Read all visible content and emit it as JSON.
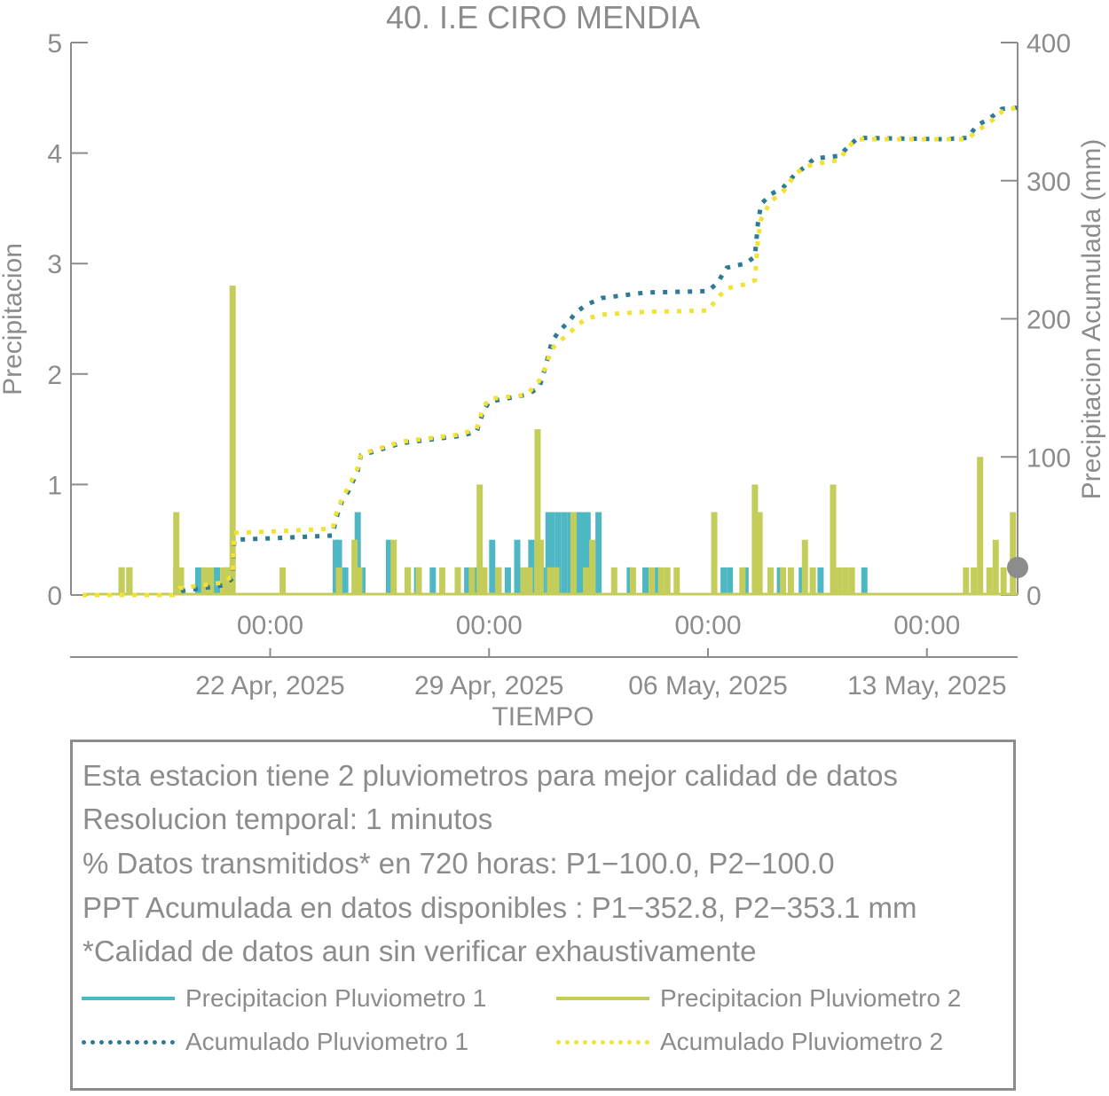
{
  "chart_data": {
    "type": "bar+line",
    "title": "40. I.E CIRO MENDIA",
    "xlabel": "TIEMPO",
    "ylabel_left": "Precipitacion",
    "ylabel_right": "Precipitacion Acumulada (mm)",
    "ylim_left": [
      0,
      5
    ],
    "ylim_right": [
      0,
      400
    ],
    "yticks_left": [
      "0",
      "1",
      "2",
      "3",
      "4",
      "5"
    ],
    "yticks_right": [
      "0",
      "100",
      "200",
      "300",
      "400"
    ],
    "x_tick_time_label": "00:00",
    "x_tick_date_labels": [
      "22 Apr, 2025",
      "29 Apr, 2025",
      "06 May, 2025",
      "13 May, 2025"
    ],
    "x_tick_days": [
      6,
      13,
      20,
      27
    ],
    "xlim_days": [
      0,
      29.9
    ],
    "series": [
      {
        "name": "Precipitacion Pluviometro 1",
        "kind": "bar",
        "color": "#4db8c4",
        "points": [
          [
            1.25,
            0.25
          ],
          [
            1.5,
            0.25
          ],
          [
            3.0,
            0.25
          ],
          [
            3.7,
            0.25
          ],
          [
            4.3,
            0.25
          ],
          [
            4.6,
            0.25
          ],
          [
            8.1,
            0.5
          ],
          [
            8.2,
            0.5
          ],
          [
            8.4,
            0.25
          ],
          [
            8.8,
            0.75
          ],
          [
            8.95,
            0.25
          ],
          [
            9.8,
            0.5
          ],
          [
            10.4,
            0.25
          ],
          [
            10.7,
            0.25
          ],
          [
            11.2,
            0.25
          ],
          [
            12.0,
            0.25
          ],
          [
            12.3,
            0.25
          ],
          [
            12.6,
            0.25
          ],
          [
            12.8,
            0.25
          ],
          [
            13.1,
            0.5
          ],
          [
            13.3,
            0.25
          ],
          [
            13.6,
            0.25
          ],
          [
            13.9,
            0.5
          ],
          [
            14.2,
            0.25
          ],
          [
            14.35,
            0.5
          ],
          [
            14.7,
            0.25
          ],
          [
            14.9,
            0.75
          ],
          [
            15.0,
            0.75
          ],
          [
            15.2,
            0.75
          ],
          [
            15.4,
            0.75
          ],
          [
            15.6,
            0.75
          ],
          [
            15.85,
            0.75
          ],
          [
            16.0,
            0.75
          ],
          [
            16.15,
            0.75
          ],
          [
            16.5,
            0.75
          ],
          [
            17.5,
            0.25
          ],
          [
            18.0,
            0.25
          ],
          [
            18.4,
            0.25
          ],
          [
            20.5,
            0.25
          ],
          [
            20.7,
            0.25
          ],
          [
            21.2,
            0.25
          ],
          [
            21.6,
            0.25
          ],
          [
            22.3,
            0.25
          ],
          [
            23.0,
            0.25
          ],
          [
            23.6,
            0.25
          ],
          [
            25.0,
            0.25
          ]
        ]
      },
      {
        "name": "Precipitacion Pluviometro 2",
        "kind": "bar",
        "color": "#c4cd5a",
        "points": [
          [
            1.25,
            0.25
          ],
          [
            1.5,
            0.25
          ],
          [
            3.0,
            0.75
          ],
          [
            3.15,
            0.25
          ],
          [
            3.9,
            0.25
          ],
          [
            4.1,
            0.25
          ],
          [
            4.5,
            0.25
          ],
          [
            4.65,
            0.25
          ],
          [
            4.8,
            2.8
          ],
          [
            6.4,
            0.25
          ],
          [
            8.2,
            0.25
          ],
          [
            8.7,
            0.5
          ],
          [
            8.85,
            0.25
          ],
          [
            9.95,
            0.5
          ],
          [
            10.4,
            0.25
          ],
          [
            10.75,
            0.25
          ],
          [
            11.5,
            0.25
          ],
          [
            12.0,
            0.25
          ],
          [
            12.45,
            0.25
          ],
          [
            12.7,
            1.0
          ],
          [
            12.85,
            0.25
          ],
          [
            13.3,
            0.25
          ],
          [
            14.1,
            0.25
          ],
          [
            14.3,
            0.25
          ],
          [
            14.55,
            1.5
          ],
          [
            14.65,
            0.5
          ],
          [
            14.95,
            0.25
          ],
          [
            15.15,
            0.25
          ],
          [
            15.7,
            0.75
          ],
          [
            16.1,
            0.25
          ],
          [
            16.3,
            0.5
          ],
          [
            17.0,
            0.25
          ],
          [
            17.6,
            0.25
          ],
          [
            18.2,
            0.25
          ],
          [
            18.5,
            0.25
          ],
          [
            18.7,
            0.25
          ],
          [
            19.0,
            0.25
          ],
          [
            20.2,
            0.75
          ],
          [
            21.1,
            0.25
          ],
          [
            21.5,
            1.0
          ],
          [
            21.65,
            0.75
          ],
          [
            22.0,
            0.25
          ],
          [
            22.4,
            0.25
          ],
          [
            22.65,
            0.25
          ],
          [
            23.1,
            0.5
          ],
          [
            23.35,
            0.25
          ],
          [
            24.0,
            1.0
          ],
          [
            24.2,
            0.25
          ],
          [
            24.4,
            0.25
          ],
          [
            24.6,
            0.25
          ],
          [
            28.25,
            0.25
          ],
          [
            28.5,
            0.25
          ],
          [
            28.7,
            1.25
          ],
          [
            29.0,
            0.25
          ],
          [
            29.2,
            0.5
          ],
          [
            29.45,
            0.25
          ],
          [
            29.75,
            0.75
          ]
        ]
      },
      {
        "name": "Acumulado Pluviometro 1",
        "kind": "line",
        "dash": "dotted",
        "color": "#2e7a94",
        "points": [
          [
            0,
            0
          ],
          [
            2.9,
            0
          ],
          [
            3.2,
            3
          ],
          [
            4.5,
            7
          ],
          [
            4.8,
            12
          ],
          [
            4.85,
            40
          ],
          [
            6.0,
            41
          ],
          [
            8.0,
            43
          ],
          [
            8.1,
            55
          ],
          [
            8.3,
            68
          ],
          [
            8.5,
            75
          ],
          [
            8.8,
            90
          ],
          [
            8.9,
            101
          ],
          [
            10.2,
            110
          ],
          [
            12.0,
            115
          ],
          [
            12.6,
            118
          ],
          [
            12.8,
            132
          ],
          [
            13.0,
            140
          ],
          [
            14.2,
            145
          ],
          [
            14.6,
            150
          ],
          [
            14.8,
            165
          ],
          [
            15.0,
            183
          ],
          [
            15.2,
            190
          ],
          [
            15.5,
            197
          ],
          [
            15.8,
            205
          ],
          [
            16.1,
            210
          ],
          [
            16.6,
            215
          ],
          [
            18.0,
            219
          ],
          [
            20.0,
            220
          ],
          [
            20.3,
            226
          ],
          [
            20.6,
            237
          ],
          [
            21.2,
            240
          ],
          [
            21.5,
            245
          ],
          [
            21.6,
            270
          ],
          [
            21.7,
            283
          ],
          [
            22.0,
            290
          ],
          [
            22.4,
            295
          ],
          [
            22.8,
            305
          ],
          [
            23.1,
            310
          ],
          [
            23.4,
            316
          ],
          [
            24.2,
            318
          ],
          [
            24.5,
            325
          ],
          [
            24.8,
            331
          ],
          [
            27.5,
            330
          ],
          [
            28.3,
            331
          ],
          [
            28.6,
            340
          ],
          [
            29.0,
            345
          ],
          [
            29.4,
            352
          ],
          [
            29.9,
            352.8
          ]
        ]
      },
      {
        "name": "Acumulado Pluviometro 2",
        "kind": "line",
        "dash": "dotted",
        "color": "#f2e237",
        "points": [
          [
            0,
            0
          ],
          [
            2.9,
            0
          ],
          [
            3.1,
            5
          ],
          [
            4.5,
            9
          ],
          [
            4.8,
            14
          ],
          [
            4.85,
            45
          ],
          [
            6.0,
            46
          ],
          [
            8.0,
            48
          ],
          [
            8.1,
            58
          ],
          [
            8.3,
            70
          ],
          [
            8.5,
            78
          ],
          [
            8.8,
            92
          ],
          [
            8.9,
            102
          ],
          [
            10.2,
            111
          ],
          [
            12.0,
            116
          ],
          [
            12.6,
            120
          ],
          [
            12.8,
            135
          ],
          [
            13.0,
            142
          ],
          [
            14.2,
            145
          ],
          [
            14.6,
            155
          ],
          [
            14.8,
            165
          ],
          [
            15.0,
            178
          ],
          [
            15.2,
            183
          ],
          [
            15.5,
            188
          ],
          [
            15.8,
            195
          ],
          [
            16.1,
            200
          ],
          [
            16.6,
            203
          ],
          [
            18.0,
            205
          ],
          [
            20.0,
            206
          ],
          [
            20.3,
            215
          ],
          [
            20.6,
            222
          ],
          [
            21.2,
            225
          ],
          [
            21.5,
            228
          ],
          [
            21.6,
            258
          ],
          [
            21.7,
            272
          ],
          [
            22.0,
            285
          ],
          [
            22.4,
            292
          ],
          [
            22.8,
            305
          ],
          [
            23.1,
            310
          ],
          [
            23.4,
            312
          ],
          [
            24.2,
            315
          ],
          [
            24.5,
            325
          ],
          [
            24.8,
            330
          ],
          [
            27.5,
            330
          ],
          [
            28.3,
            330
          ],
          [
            28.6,
            336
          ],
          [
            29.0,
            342
          ],
          [
            29.4,
            350
          ],
          [
            29.9,
            353.1
          ]
        ]
      }
    ]
  },
  "info": {
    "lines": [
      "Esta estacion tiene 2 pluviometros para mejor calidad de datos",
      "Resolucion temporal: 1 minutos",
      "% Datos transmitidos* en 720 horas: P1−100.0, P2−100.0",
      "PPT Acumulada en datos disponibles : P1−352.8, P2−353.1 mm",
      "*Calidad de datos aun sin verificar exhaustivamente"
    ],
    "legend": [
      {
        "label": "Precipitacion Pluviometro 1",
        "color": "#4db8c4",
        "style": "solid"
      },
      {
        "label": "Precipitacion Pluviometro 2",
        "color": "#c4cd5a",
        "style": "solid"
      },
      {
        "label": "Acumulado Pluviometro 1",
        "color": "#2e7a94",
        "style": "dotted"
      },
      {
        "label": "Acumulado Pluviometro 2",
        "color": "#f2e237",
        "style": "dotted"
      }
    ]
  }
}
